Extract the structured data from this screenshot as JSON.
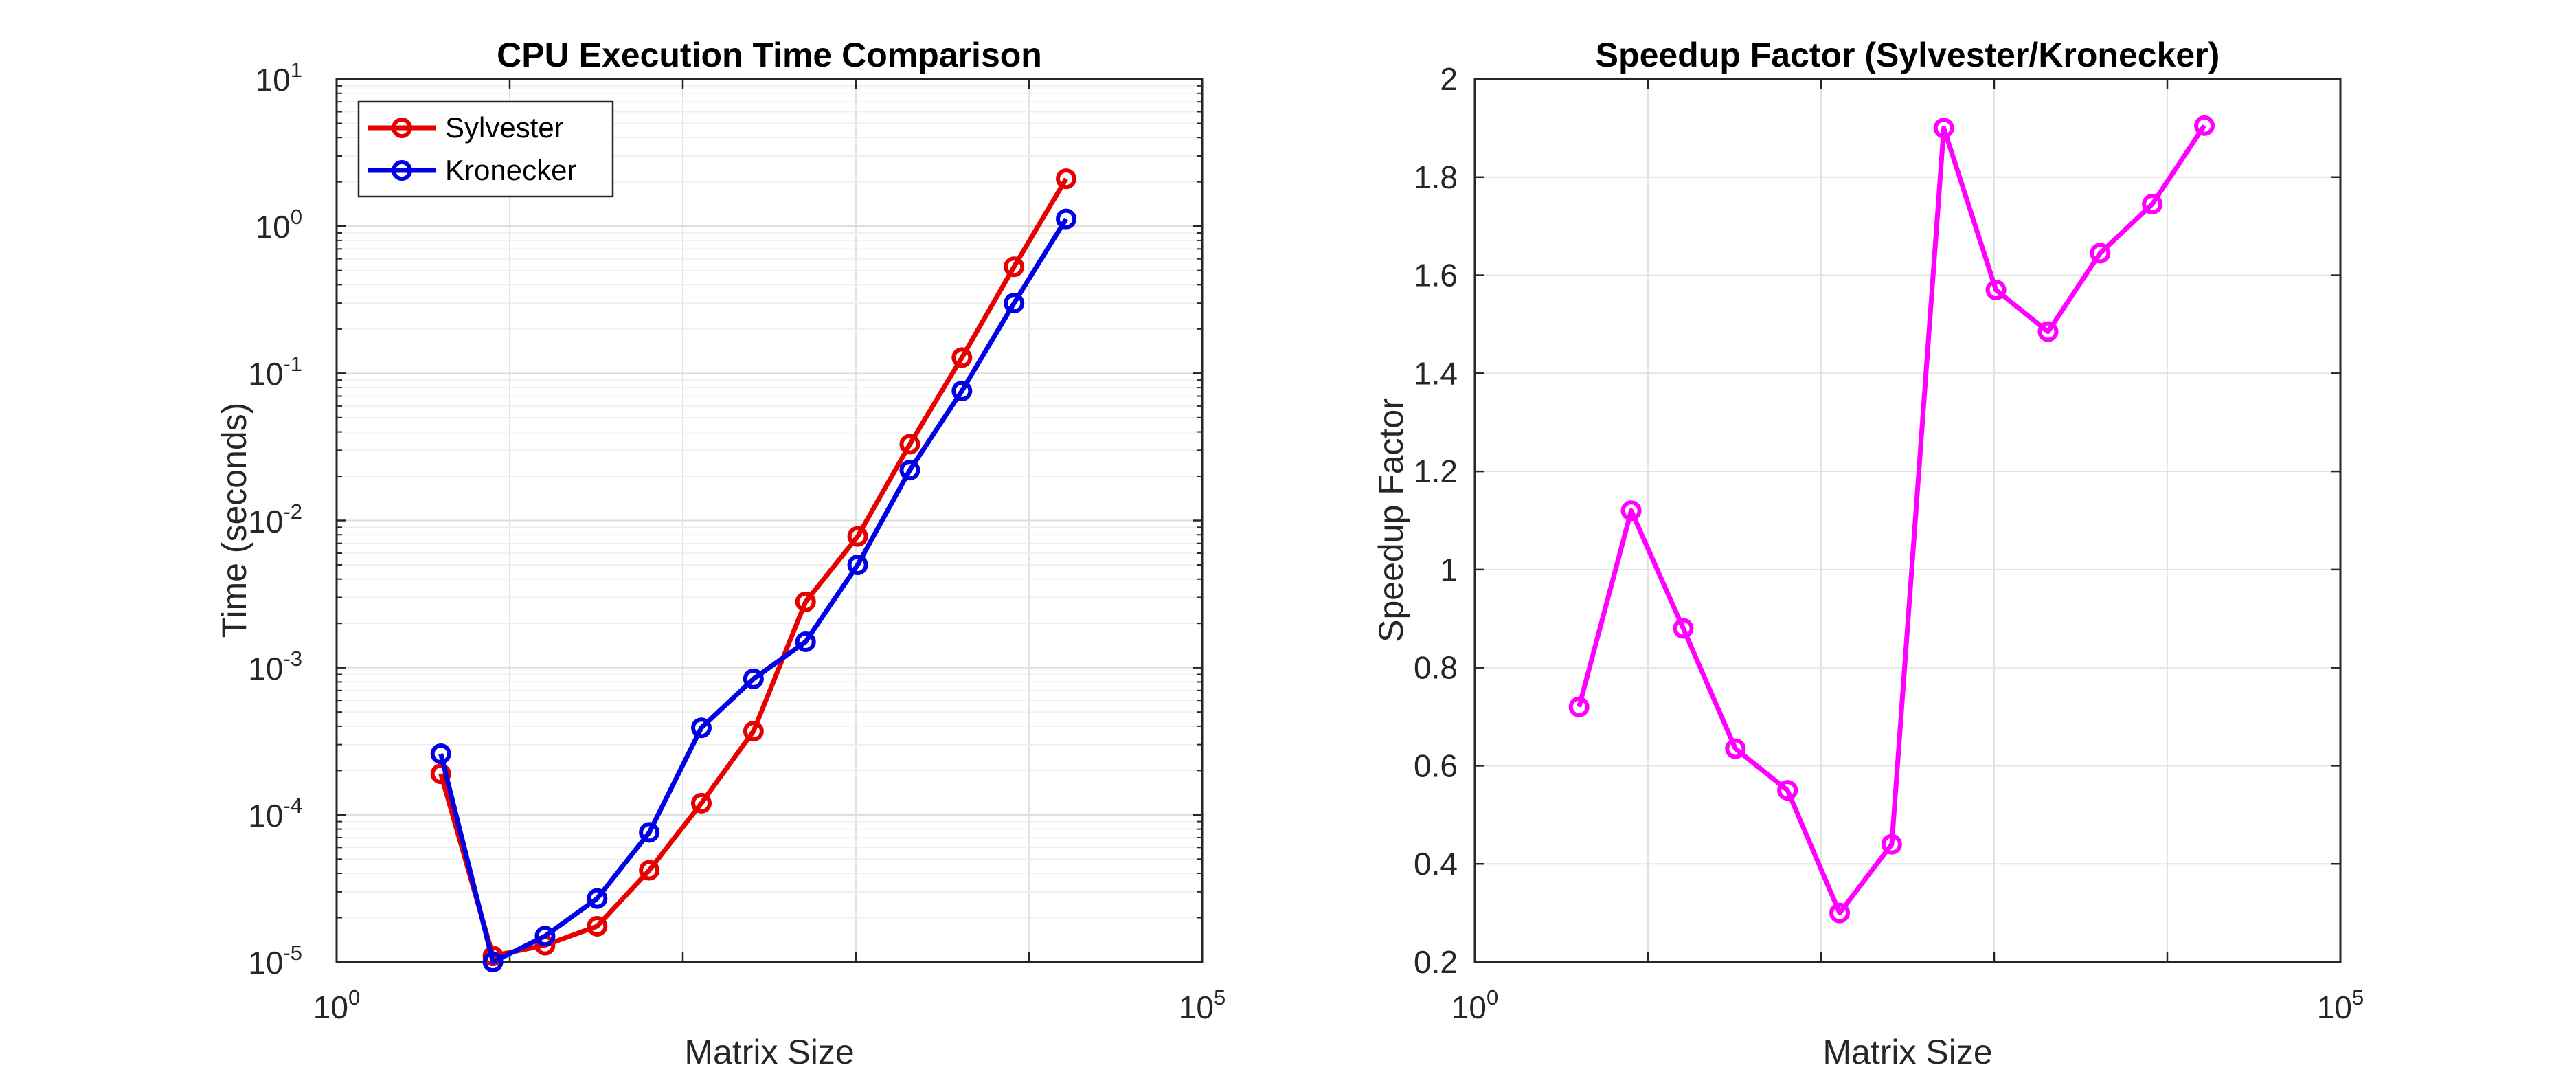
{
  "chart_data": [
    {
      "type": "line",
      "title": "CPU Execution Time Comparison",
      "xlabel": "Matrix Size",
      "ylabel": "Time (seconds)",
      "xscale": "log",
      "yscale": "log",
      "xlim": [
        1,
        100000
      ],
      "ylim": [
        1e-05,
        10
      ],
      "xtick_labels": [
        {
          "base": "10",
          "exp": "0"
        },
        {
          "base": "10",
          "exp": "5"
        }
      ],
      "ytick_labels": [
        {
          "base": "10",
          "exp": "-5"
        },
        {
          "base": "10",
          "exp": "-4"
        },
        {
          "base": "10",
          "exp": "-3"
        },
        {
          "base": "10",
          "exp": "-2"
        },
        {
          "base": "10",
          "exp": "-1"
        },
        {
          "base": "10",
          "exp": "0"
        },
        {
          "base": "10",
          "exp": "1"
        }
      ],
      "grid": true,
      "minor_grid": true,
      "legend_position": "top-left",
      "x": [
        4,
        8,
        16,
        32,
        64,
        128,
        256,
        512,
        1024,
        2048,
        4096,
        8192,
        16384
      ],
      "series": [
        {
          "name": "Sylvester",
          "color": "#e60000",
          "values": [
            0.00019,
            1.1e-05,
            1.3e-05,
            1.75e-05,
            4.2e-05,
            0.00012,
            0.00037,
            0.0028,
            0.0078,
            0.033,
            0.128,
            0.53,
            2.1
          ]
        },
        {
          "name": "Kronecker",
          "color": "#0000e6",
          "values": [
            0.00026,
            1e-05,
            1.5e-05,
            2.7e-05,
            7.6e-05,
            0.00039,
            0.00084,
            0.0015,
            0.005,
            0.022,
            0.076,
            0.3,
            1.12
          ]
        }
      ]
    },
    {
      "type": "line",
      "title": "Speedup Factor (Sylvester/Kronecker)",
      "xlabel": "Matrix Size",
      "ylabel": "Speedup Factor",
      "xscale": "log",
      "yscale": "linear",
      "xlim": [
        1,
        100000
      ],
      "ylim": [
        0.2,
        2
      ],
      "xtick_labels": [
        {
          "base": "10",
          "exp": "0"
        },
        {
          "base": "10",
          "exp": "5"
        }
      ],
      "ytick_labels": [
        "0.2",
        "0.4",
        "0.6",
        "0.8",
        "1",
        "1.2",
        "1.4",
        "1.6",
        "1.8",
        "2"
      ],
      "grid": true,
      "x": [
        4,
        8,
        16,
        32,
        64,
        128,
        256,
        512,
        1024,
        2048,
        4096,
        8192,
        16384
      ],
      "series": [
        {
          "color": "#ff00ff",
          "values": [
            0.72,
            1.12,
            0.88,
            0.635,
            0.55,
            0.3,
            0.44,
            1.9,
            1.57,
            1.485,
            1.645,
            1.745,
            1.905
          ]
        }
      ]
    }
  ]
}
